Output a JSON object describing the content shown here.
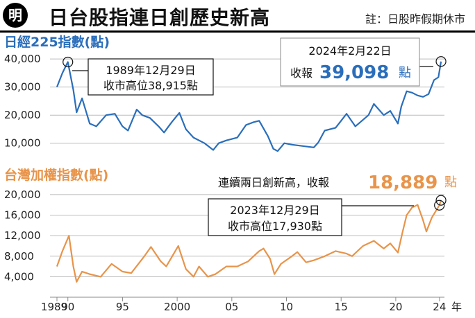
{
  "header": {
    "logo": "明",
    "title": "日台股指連日創歷史新高",
    "note": "註：日股昨假期休市"
  },
  "colors": {
    "nikkei": "#2a6ebb",
    "taiex": "#e8944a",
    "axis": "#999999"
  },
  "chart_data": [
    {
      "type": "line",
      "title": "日經225指數(點)",
      "ylim": [
        5000,
        42000
      ],
      "yticks": [
        10000,
        20000,
        30000,
        40000
      ],
      "ytick_labels": [
        "10,000",
        "20,000",
        "30,000",
        "40,000"
      ],
      "series": [
        {
          "name": "日經225指數",
          "x": [
            1989.0,
            1989.5,
            1990.0,
            1990.5,
            1990.8,
            1991.3,
            1992.0,
            1992.6,
            1993.5,
            1994.3,
            1995.0,
            1995.5,
            1996.3,
            1996.8,
            1997.5,
            1998.3,
            1998.8,
            1999.5,
            2000.2,
            2000.8,
            2001.5,
            2002.5,
            2003.3,
            2003.8,
            2004.5,
            2005.5,
            2006.3,
            2007.0,
            2007.5,
            2008.3,
            2008.8,
            2009.2,
            2009.8,
            2010.5,
            2011.5,
            2012.5,
            2012.9,
            2013.5,
            2014.5,
            2015.5,
            2016.3,
            2017.5,
            2018.0,
            2018.9,
            2019.5,
            2020.2,
            2020.5,
            2021.0,
            2021.5,
            2022.0,
            2022.5,
            2023.0,
            2023.5,
            2023.9,
            2024.14
          ],
          "values": [
            30000,
            35000,
            38915,
            29000,
            21000,
            26000,
            17000,
            16000,
            20000,
            20500,
            16000,
            14500,
            22000,
            20000,
            19000,
            16000,
            13800,
            17500,
            20800,
            15000,
            12000,
            10000,
            7600,
            10000,
            11000,
            12000,
            16500,
            17500,
            18000,
            12500,
            8000,
            7200,
            10000,
            9500,
            9000,
            8500,
            10200,
            14500,
            15500,
            20500,
            16000,
            20000,
            24000,
            20000,
            21500,
            17000,
            23000,
            28500,
            28000,
            27000,
            26500,
            27500,
            32500,
            33500,
            39098
          ]
        }
      ],
      "annotations": [
        {
          "line1": "1989年12月29日",
          "line2": "收市高位38,915點"
        },
        {
          "line1": "2024年2月22日",
          "prefix": "收報",
          "value": "39,098",
          "unit": "點"
        }
      ]
    },
    {
      "type": "line",
      "title": "台灣加權指數(點)",
      "ylim": [
        0,
        20800
      ],
      "yticks": [
        4000,
        8000,
        12000,
        16000,
        20000
      ],
      "ytick_labels": [
        "4,000",
        "8,000",
        "12,000",
        "16,000",
        "20,000"
      ],
      "series": [
        {
          "name": "台灣加權指數",
          "x": [
            1989.0,
            1989.5,
            1990.1,
            1990.5,
            1990.8,
            1991.3,
            1992.0,
            1993.0,
            1994.0,
            1995.0,
            1995.8,
            1997.0,
            1997.6,
            1998.5,
            1999.0,
            2000.1,
            2000.8,
            2001.5,
            2002.0,
            2002.8,
            2003.5,
            2004.5,
            2005.5,
            2006.5,
            2007.5,
            2007.9,
            2008.5,
            2008.9,
            2009.5,
            2010.5,
            2011.0,
            2011.8,
            2012.5,
            2013.5,
            2014.5,
            2015.5,
            2016.0,
            2017.0,
            2018.0,
            2018.9,
            2019.5,
            2020.2,
            2020.6,
            2021.0,
            2021.5,
            2022.0,
            2022.5,
            2022.8,
            2023.3,
            2023.99,
            2024.14
          ],
          "values": [
            6000,
            9000,
            12000,
            6000,
            3000,
            5000,
            4500,
            4000,
            6500,
            5000,
            4700,
            8000,
            9800,
            7000,
            6000,
            10000,
            5500,
            4000,
            6000,
            4000,
            4500,
            6000,
            6000,
            7000,
            9000,
            9500,
            7500,
            4500,
            6500,
            8000,
            8800,
            6800,
            7200,
            8000,
            9000,
            8500,
            8000,
            10000,
            11000,
            9500,
            10500,
            8700,
            12500,
            16000,
            17500,
            18000,
            15000,
            12800,
            15500,
            17930,
            18889
          ]
        }
      ],
      "annotations": [
        {
          "line1": "2023年12月29日",
          "line2": "收市高位17,930點"
        },
        {
          "text": "連續兩日創新高，收報",
          "value": "18,889",
          "unit": "點"
        }
      ]
    }
  ],
  "x_axis": {
    "ticks": [
      1989,
      1990,
      1995,
      2000,
      2005,
      2010,
      2015,
      2020,
      2024
    ],
    "tick_labels": [
      "1989",
      "90",
      "95",
      "2000",
      "05",
      "10",
      "15",
      "20",
      "24"
    ],
    "unit": "年"
  }
}
